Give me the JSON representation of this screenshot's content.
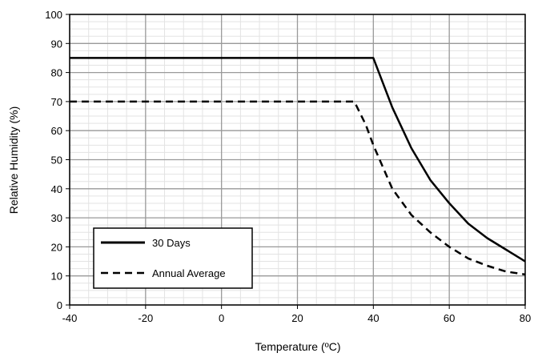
{
  "chart_data": {
    "type": "line",
    "xlabel": "Temperature (ºC)",
    "ylabel": "Relative Humidity (%)",
    "xlim": [
      -40,
      80
    ],
    "ylim": [
      0,
      100
    ],
    "x_ticks": [
      -40,
      -20,
      0,
      20,
      40,
      60,
      80
    ],
    "y_ticks": [
      0,
      10,
      20,
      30,
      40,
      50,
      60,
      70,
      80,
      90,
      100
    ],
    "x_tick_labels": [
      "-40",
      "-20",
      "0",
      "20",
      "40",
      "60",
      "80"
    ],
    "y_tick_labels": [
      "0",
      "10",
      "20",
      "30",
      "40",
      "50",
      "60",
      "70",
      "80",
      "90",
      "100"
    ],
    "grid": true,
    "minor_grid": true,
    "legend_position": "bottom-left",
    "series": [
      {
        "name": "30 Days",
        "style": "solid",
        "color": "#000000",
        "x": [
          -40,
          40,
          45,
          50,
          55,
          60,
          65,
          70,
          75,
          80
        ],
        "y": [
          85,
          85,
          68,
          54,
          43,
          35,
          28,
          23,
          19,
          15
        ]
      },
      {
        "name": "Annual Average",
        "style": "dashed",
        "color": "#000000",
        "x": [
          -40,
          35,
          38,
          40,
          45,
          50,
          55,
          60,
          65,
          70,
          75,
          80
        ],
        "y": [
          70,
          70,
          62,
          55,
          40,
          31,
          25,
          20,
          16,
          13.5,
          11.5,
          10.5
        ]
      }
    ]
  }
}
